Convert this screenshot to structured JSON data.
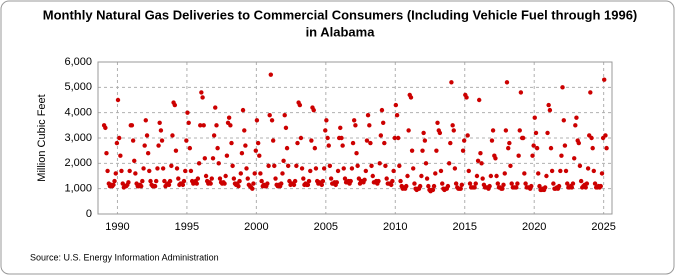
{
  "chart_data": {
    "type": "scatter",
    "title": [
      "Monthly Natural Gas Deliveries to Commercial Consumers (Including Vehicle Fuel through 1996)",
      "in Alabama"
    ],
    "ylabel": "Million Cubic Feet",
    "source": "Source: U.S. Energy Information Administration",
    "color": "#cc0000",
    "grid": true,
    "xlim": [
      1988.6,
      2025.6
    ],
    "xticks": [
      1990,
      1995,
      2000,
      2005,
      2010,
      2015,
      2020,
      2025
    ],
    "ylim": [
      0,
      6000
    ],
    "yticks": [
      {
        "value": 0,
        "label": "0"
      },
      {
        "value": 1000,
        "label": "1,000"
      },
      {
        "value": 2000,
        "label": "2,000"
      },
      {
        "value": 3000,
        "label": "3,000"
      },
      {
        "value": 4000,
        "label": "4,000"
      },
      {
        "value": 5000,
        "label": "5,000"
      },
      {
        "value": 6000,
        "label": "6,000"
      }
    ],
    "x": [
      1989.04,
      1989.13,
      1989.21,
      1989.29,
      1989.38,
      1989.46,
      1989.54,
      1989.63,
      1989.71,
      1989.79,
      1989.88,
      1989.96,
      1990.04,
      1990.13,
      1990.21,
      1990.29,
      1990.38,
      1990.46,
      1990.54,
      1990.63,
      1990.71,
      1990.79,
      1990.88,
      1990.96,
      1991.04,
      1991.13,
      1991.21,
      1991.29,
      1991.38,
      1991.46,
      1991.54,
      1991.63,
      1991.71,
      1991.79,
      1991.88,
      1991.96,
      1992.04,
      1992.13,
      1992.21,
      1992.29,
      1992.38,
      1992.46,
      1992.54,
      1992.63,
      1992.71,
      1992.79,
      1992.88,
      1992.96,
      1993.04,
      1993.13,
      1993.21,
      1993.29,
      1993.38,
      1993.46,
      1993.54,
      1993.63,
      1993.71,
      1993.79,
      1993.88,
      1993.96,
      1994.04,
      1994.13,
      1994.21,
      1994.29,
      1994.38,
      1994.46,
      1994.54,
      1994.63,
      1994.71,
      1994.79,
      1994.88,
      1994.96,
      1995.04,
      1995.13,
      1995.21,
      1995.29,
      1995.38,
      1995.46,
      1995.54,
      1995.63,
      1995.71,
      1995.79,
      1995.88,
      1995.96,
      1996.04,
      1996.13,
      1996.21,
      1996.29,
      1996.38,
      1996.46,
      1996.54,
      1996.63,
      1996.71,
      1996.79,
      1996.88,
      1996.96,
      1997.04,
      1997.13,
      1997.21,
      1997.29,
      1997.38,
      1997.46,
      1997.54,
      1997.63,
      1997.71,
      1997.79,
      1997.88,
      1997.96,
      1998.04,
      1998.13,
      1998.21,
      1998.29,
      1998.38,
      1998.46,
      1998.54,
      1998.63,
      1998.71,
      1998.79,
      1998.88,
      1998.96,
      1999.04,
      1999.13,
      1999.21,
      1999.29,
      1999.38,
      1999.46,
      1999.54,
      1999.63,
      1999.71,
      1999.79,
      1999.88,
      1999.96,
      2000.04,
      2000.13,
      2000.21,
      2000.29,
      2000.38,
      2000.46,
      2000.54,
      2000.63,
      2000.71,
      2000.79,
      2000.88,
      2000.96,
      2001.04,
      2001.13,
      2001.21,
      2001.29,
      2001.38,
      2001.46,
      2001.54,
      2001.63,
      2001.71,
      2001.79,
      2001.88,
      2001.96,
      2002.04,
      2002.13,
      2002.21,
      2002.29,
      2002.38,
      2002.46,
      2002.54,
      2002.63,
      2002.71,
      2002.79,
      2002.88,
      2002.96,
      2003.04,
      2003.13,
      2003.21,
      2003.29,
      2003.38,
      2003.46,
      2003.54,
      2003.63,
      2003.71,
      2003.79,
      2003.88,
      2003.96,
      2004.04,
      2004.13,
      2004.21,
      2004.29,
      2004.38,
      2004.46,
      2004.54,
      2004.63,
      2004.71,
      2004.79,
      2004.88,
      2004.96,
      2005.04,
      2005.13,
      2005.21,
      2005.29,
      2005.38,
      2005.46,
      2005.54,
      2005.63,
      2005.71,
      2005.79,
      2005.88,
      2005.96,
      2006.04,
      2006.13,
      2006.21,
      2006.29,
      2006.38,
      2006.46,
      2006.54,
      2006.63,
      2006.71,
      2006.79,
      2006.88,
      2006.96,
      2007.04,
      2007.13,
      2007.21,
      2007.29,
      2007.38,
      2007.46,
      2007.54,
      2007.63,
      2007.71,
      2007.79,
      2007.88,
      2007.96,
      2008.04,
      2008.13,
      2008.21,
      2008.29,
      2008.38,
      2008.46,
      2008.54,
      2008.63,
      2008.71,
      2008.79,
      2008.88,
      2008.96,
      2009.04,
      2009.13,
      2009.21,
      2009.29,
      2009.38,
      2009.46,
      2009.54,
      2009.63,
      2009.71,
      2009.79,
      2009.88,
      2009.96,
      2010.04,
      2010.13,
      2010.21,
      2010.29,
      2010.38,
      2010.46,
      2010.54,
      2010.63,
      2010.71,
      2010.79,
      2010.88,
      2010.96,
      2011.04,
      2011.13,
      2011.21,
      2011.29,
      2011.38,
      2011.46,
      2011.54,
      2011.63,
      2011.71,
      2011.79,
      2011.88,
      2011.96,
      2012.04,
      2012.13,
      2012.21,
      2012.29,
      2012.38,
      2012.46,
      2012.54,
      2012.63,
      2012.71,
      2012.79,
      2012.88,
      2012.96,
      2013.04,
      2013.13,
      2013.21,
      2013.29,
      2013.38,
      2013.46,
      2013.54,
      2013.63,
      2013.71,
      2013.79,
      2013.88,
      2013.96,
      2014.04,
      2014.13,
      2014.21,
      2014.29,
      2014.38,
      2014.46,
      2014.54,
      2014.63,
      2014.71,
      2014.79,
      2014.88,
      2014.96,
      2015.04,
      2015.13,
      2015.21,
      2015.29,
      2015.38,
      2015.46,
      2015.54,
      2015.63,
      2015.71,
      2015.79,
      2015.88,
      2015.96,
      2016.04,
      2016.13,
      2016.21,
      2016.29,
      2016.38,
      2016.46,
      2016.54,
      2016.63,
      2016.71,
      2016.79,
      2016.88,
      2016.96,
      2017.04,
      2017.13,
      2017.21,
      2017.29,
      2017.38,
      2017.46,
      2017.54,
      2017.63,
      2017.71,
      2017.79,
      2017.88,
      2017.96,
      2018.04,
      2018.13,
      2018.21,
      2018.29,
      2018.38,
      2018.46,
      2018.54,
      2018.63,
      2018.71,
      2018.79,
      2018.88,
      2018.96,
      2019.04,
      2019.13,
      2019.21,
      2019.29,
      2019.38,
      2019.46,
      2019.54,
      2019.63,
      2019.71,
      2019.79,
      2019.88,
      2019.96,
      2020.04,
      2020.13,
      2020.21,
      2020.29,
      2020.38,
      2020.46,
      2020.54,
      2020.63,
      2020.71,
      2020.79,
      2020.88,
      2020.96,
      2021.04,
      2021.13,
      2021.21,
      2021.29,
      2021.38,
      2021.46,
      2021.54,
      2021.63,
      2021.71,
      2021.79,
      2021.88,
      2021.96,
      2022.04,
      2022.13,
      2022.21,
      2022.29,
      2022.38,
      2022.46,
      2022.54,
      2022.63,
      2022.71,
      2022.79,
      2022.88,
      2022.96,
      2023.04,
      2023.13,
      2023.21,
      2023.29,
      2023.38,
      2023.46,
      2023.54,
      2023.63,
      2023.71,
      2023.79,
      2023.88,
      2023.96,
      2024.04,
      2024.13,
      2024.21,
      2024.29,
      2024.38,
      2024.46,
      2024.54,
      2024.63,
      2024.71,
      2024.79,
      2024.88,
      2024.96,
      2025.04,
      2025.13,
      2025.21
    ],
    "values": [
      3500,
      3400,
      2400,
      1700,
      1200,
      1100,
      1150,
      1100,
      1150,
      1300,
      1600,
      2800,
      4500,
      3000,
      2300,
      1700,
      1200,
      1050,
      1100,
      1100,
      1150,
      1250,
      1700,
      3500,
      3500,
      2900,
      2100,
      1600,
      1200,
      1100,
      1100,
      1150,
      1100,
      1300,
      1800,
      2700,
      3700,
      3100,
      2400,
      1700,
      1300,
      1150,
      1100,
      1100,
      1100,
      1300,
      1800,
      2700,
      3600,
      3300,
      2900,
      1800,
      1300,
      1100,
      1150,
      1200,
      1150,
      1300,
      1900,
      3100,
      4400,
      4300,
      2500,
      1800,
      1400,
      1150,
      1200,
      1200,
      1150,
      1300,
      1700,
      2900,
      4000,
      3600,
      2600,
      1700,
      1300,
      1200,
      1250,
      1300,
      1200,
      1400,
      2000,
      3500,
      4800,
      4600,
      3500,
      2200,
      1500,
      1300,
      1200,
      1250,
      1200,
      1400,
      2200,
      3100,
      4200,
      3500,
      2600,
      2000,
      1400,
      1250,
      1200,
      1250,
      1200,
      1500,
      2300,
      3600,
      3800,
      3500,
      2800,
      1900,
      1400,
      1200,
      1150,
      1200,
      1100,
      1300,
      1600,
      2400,
      4100,
      3300,
      2700,
      1800,
      1400,
      1150,
      1100,
      1050,
      1000,
      1200,
      1600,
      2500,
      3700,
      2800,
      2300,
      1600,
      1300,
      1100,
      1150,
      1100,
      1100,
      1200,
      1900,
      3900,
      5500,
      3700,
      2900,
      1900,
      1400,
      1150,
      1100,
      1150,
      1100,
      1200,
      1600,
      2100,
      3900,
      3400,
      2600,
      1900,
      1300,
      1150,
      1200,
      1200,
      1150,
      1300,
      1900,
      2800,
      4400,
      4300,
      3000,
      1800,
      1400,
      1150,
      1200,
      1150,
      1150,
      1300,
      1700,
      2900,
      4200,
      4100,
      2600,
      1800,
      1300,
      1200,
      1250,
      1200,
      1150,
      1300,
      1800,
      3300,
      3700,
      3000,
      2700,
      1900,
      1400,
      1200,
      1200,
      1250,
      1150,
      1250,
      1700,
      3000,
      3400,
      3000,
      2700,
      1800,
      1400,
      1250,
      1250,
      1300,
      1200,
      1300,
      1800,
      2800,
      3700,
      3500,
      2400,
      1900,
      1400,
      1200,
      1300,
      1300,
      1250,
      1350,
      1700,
      2900,
      3900,
      3500,
      2800,
      1900,
      1500,
      1250,
      1250,
      1300,
      1200,
      1300,
      2000,
      3100,
      4100,
      3600,
      2800,
      1900,
      1400,
      1200,
      1200,
      1200,
      1150,
      1300,
      1700,
      3000,
      4300,
      3900,
      3000,
      1900,
      1300,
      1100,
      1000,
      1050,
      1000,
      1100,
      1500,
      3300,
      4700,
      4600,
      2500,
      1800,
      1200,
      1000,
      950,
      1000,
      1000,
      1100,
      1500,
      2500,
      3200,
      2900,
      2000,
      1400,
      1100,
      950,
      900,
      950,
      950,
      1100,
      1600,
      2500,
      3600,
      3300,
      3200,
      1700,
      1200,
      1000,
      950,
      1000,
      1000,
      1100,
      2000,
      2800,
      5200,
      3500,
      3300,
      1800,
      1200,
      1050,
      1000,
      1000,
      1000,
      1150,
      2500,
      2900,
      4700,
      4600,
      3100,
      1700,
      1200,
      1050,
      1050,
      1050,
      1050,
      1200,
      1500,
      2100,
      4500,
      2400,
      2000,
      1400,
      1150,
      1050,
      1050,
      1050,
      1000,
      1100,
      1500,
      2900,
      3300,
      2300,
      2200,
      1500,
      1200,
      1050,
      1050,
      1000,
      1000,
      1150,
      1600,
      3300,
      5200,
      2600,
      2800,
      1900,
      1200,
      1050,
      1050,
      1050,
      1050,
      1200,
      2300,
      3300,
      4800,
      3000,
      3000,
      1600,
      1200,
      1050,
      1050,
      1050,
      1000,
      1100,
      2300,
      2700,
      3800,
      3200,
      2600,
      1600,
      1100,
      950,
      950,
      1000,
      950,
      1050,
      1500,
      3200,
      4300,
      4100,
      2600,
      1700,
      1200,
      1000,
      1000,
      1050,
      1000,
      1100,
      1700,
      2300,
      5000,
      3700,
      2700,
      1700,
      1200,
      1050,
      1050,
      1100,
      1050,
      1200,
      2200,
      3500,
      3800,
      2900,
      2800,
      1900,
      1300,
      1050,
      1100,
      1150,
      1050,
      1200,
      1800,
      3100,
      4800,
      3000,
      2600,
      1700,
      1200,
      1050,
      1050,
      1100,
      1050,
      1100,
      1600,
      3000,
      5300,
      3100,
      2600
    ]
  }
}
